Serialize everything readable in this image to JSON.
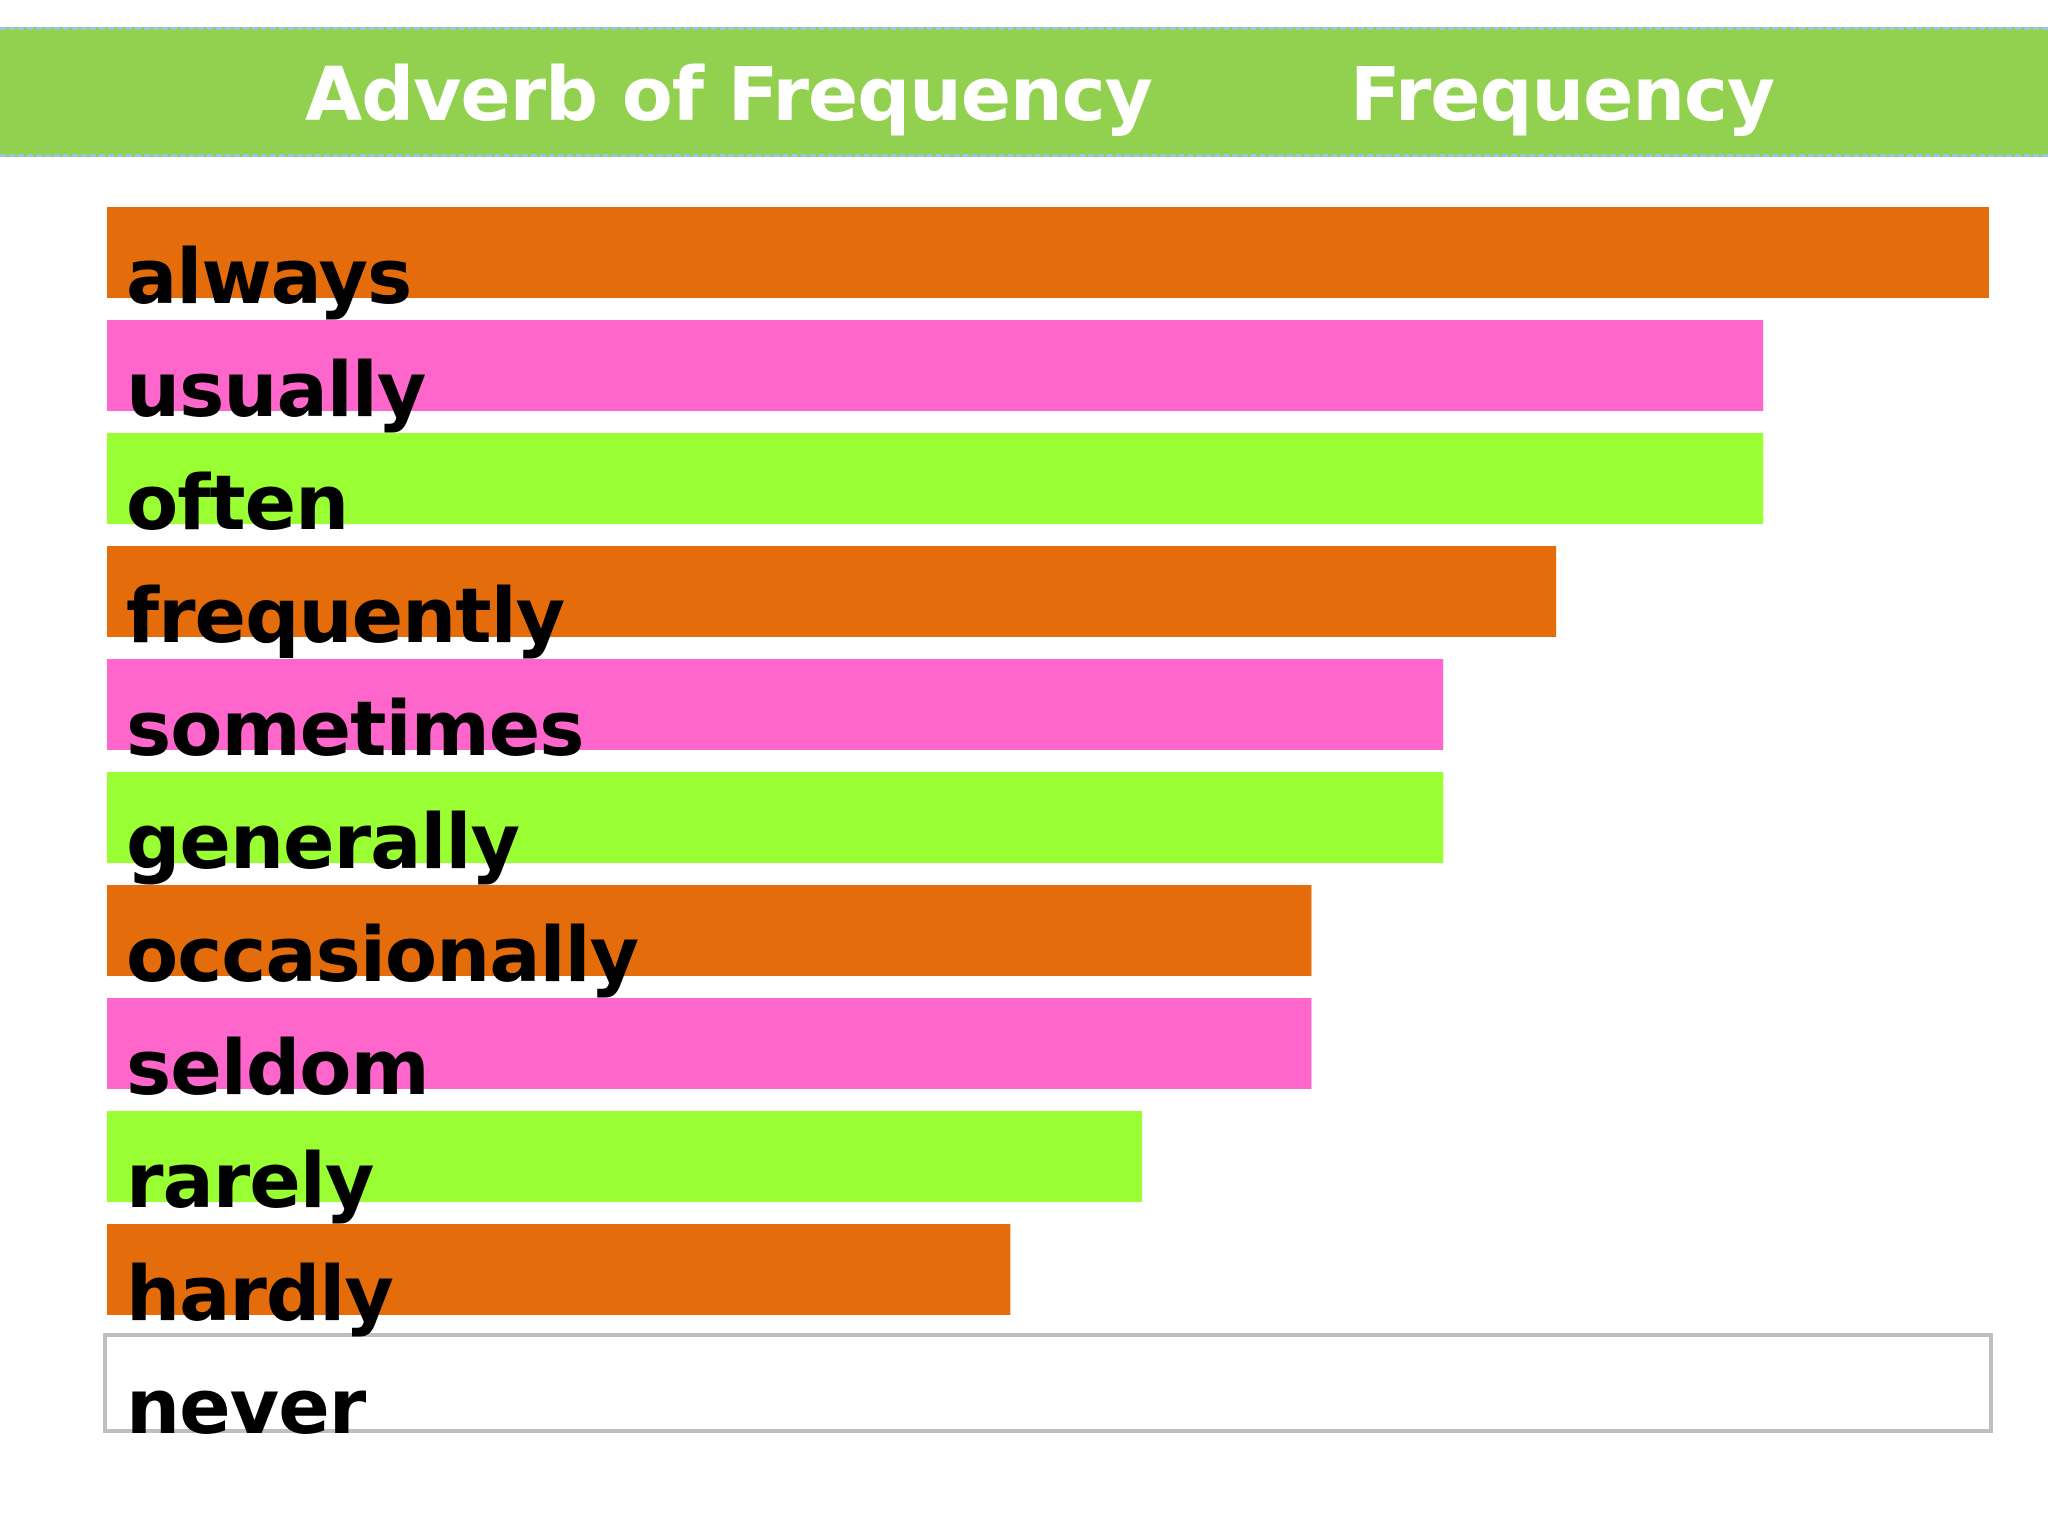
{
  "header": {
    "col1": "Adverb of Frequency",
    "col2": "Frequency"
  },
  "colors": {
    "header_bg": "#92d050",
    "header_border": "#9dc3e6",
    "orange": "#e46c0a",
    "pink": "#ff66cc",
    "green": "#99ff33",
    "empty_border": "#bfbfbf"
  },
  "chart_data": {
    "type": "bar",
    "orientation": "horizontal",
    "categories": [
      "always",
      "usually",
      "often",
      "frequently",
      "sometimes",
      "generally",
      "occasionally",
      "seldom",
      "rarely",
      "hardly",
      "never"
    ],
    "values": [
      100,
      88,
      88,
      77,
      71,
      71,
      64,
      64,
      55,
      48,
      0
    ],
    "bar_colors": [
      "orange",
      "pink",
      "green",
      "orange",
      "pink",
      "green",
      "orange",
      "pink",
      "green",
      "orange",
      "none"
    ],
    "xlim": [
      0,
      100
    ],
    "grid": false,
    "legend": "none"
  }
}
